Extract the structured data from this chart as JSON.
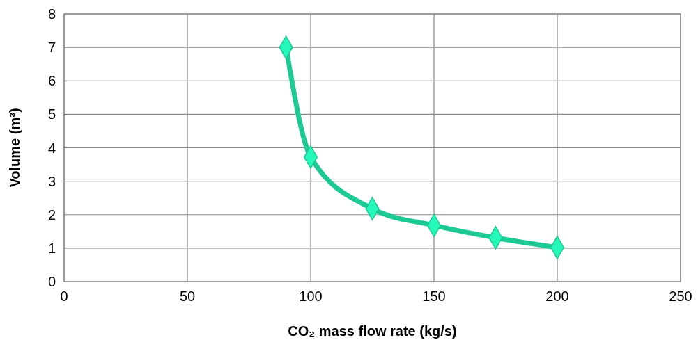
{
  "chart_data": {
    "type": "line",
    "xlabel": "CO₂ mass flow rate (kg/s)",
    "ylabel": "Volume (m³)",
    "x": [
      90,
      100,
      125,
      150,
      175,
      200
    ],
    "series": [
      {
        "color": "#1dc995",
        "values": [
          7.0,
          3.72,
          2.18,
          1.68,
          1.31,
          1.02
        ]
      }
    ],
    "xlim": [
      0,
      250
    ],
    "xticks": [
      0,
      50,
      100,
      150,
      200,
      250
    ],
    "ylim": [
      0,
      8
    ],
    "yticks": [
      0,
      1,
      2,
      3,
      4,
      5,
      6,
      7,
      8
    ],
    "grid": true,
    "marker": "diamond",
    "line_style": "solid"
  }
}
